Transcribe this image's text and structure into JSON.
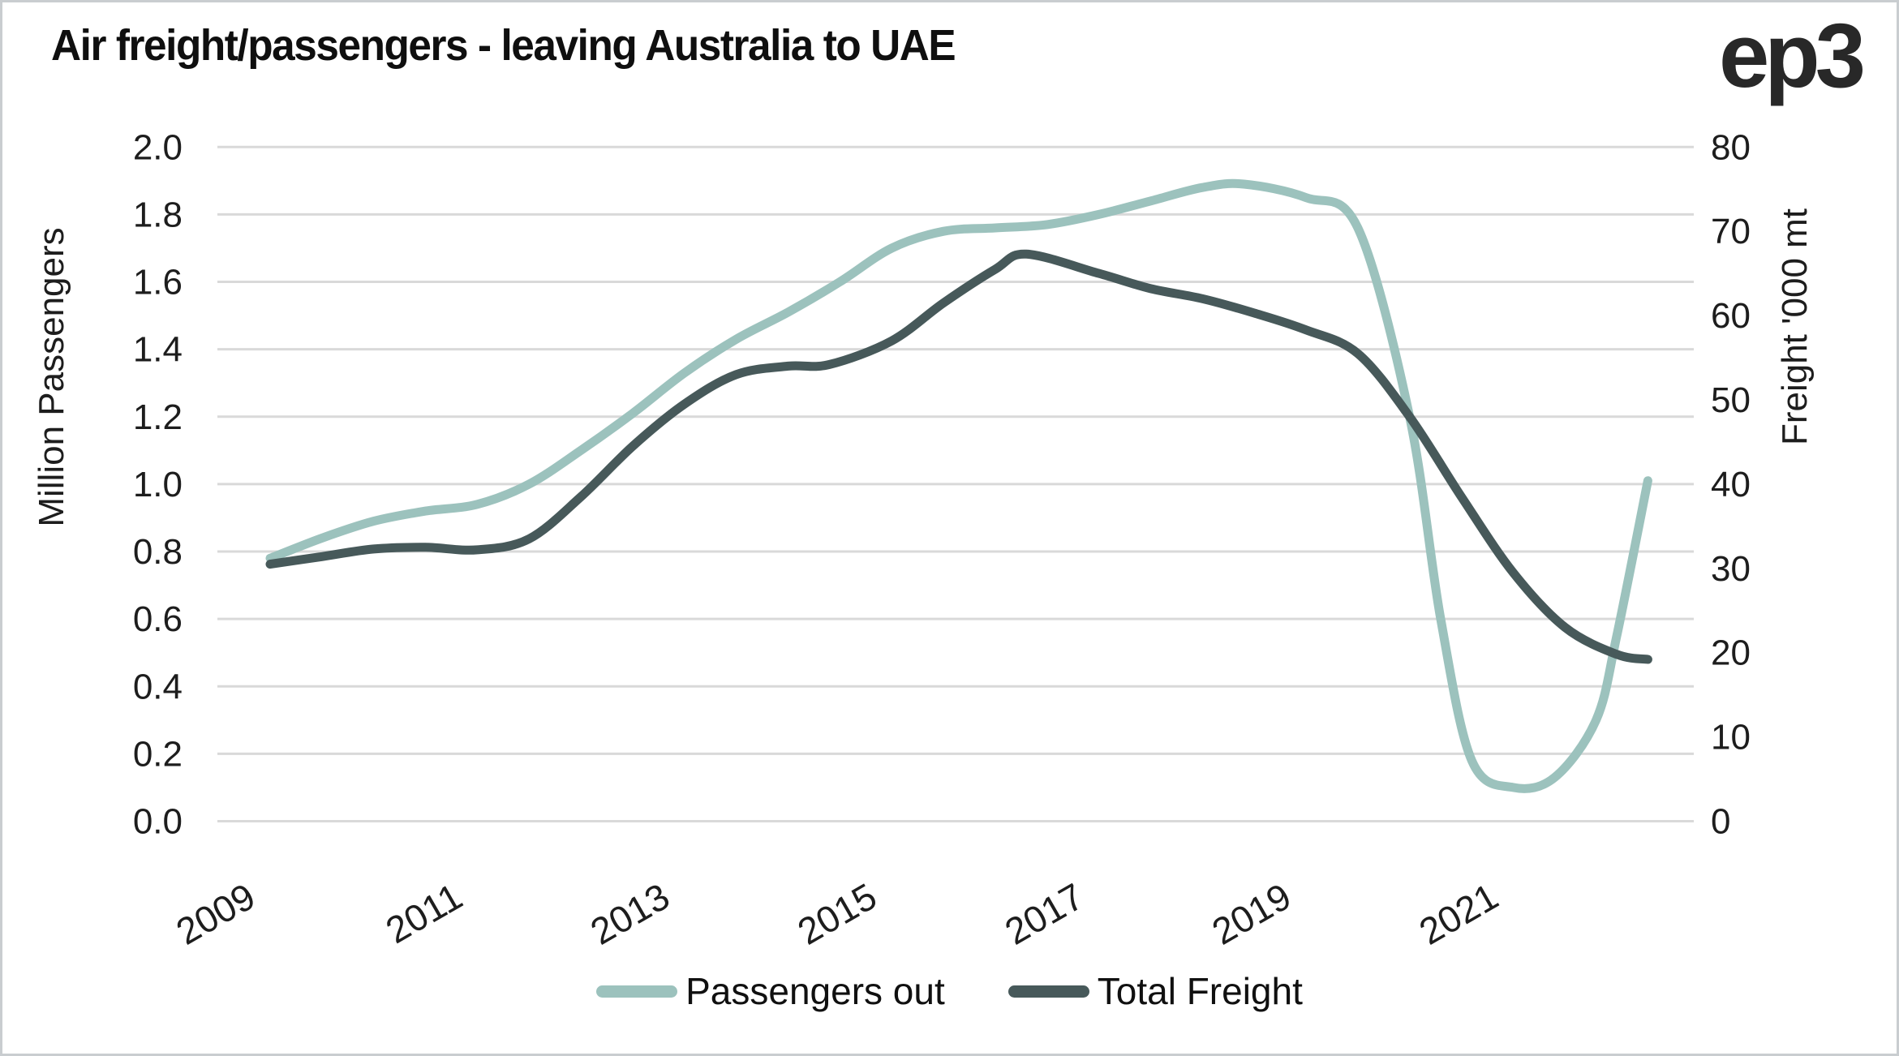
{
  "header": {
    "title": "Air freight/passengers - leaving Australia to UAE",
    "logo": "ep3"
  },
  "legend": {
    "items": [
      {
        "label": "Passengers out",
        "color": "#9cc2bd"
      },
      {
        "label": "Total Freight",
        "color": "#47595a"
      }
    ]
  },
  "colors": {
    "passengers_line": "#9cc2bd",
    "freight_line": "#47595a",
    "gridline": "#d9d9d9",
    "text": "#1d1d1d",
    "background": "#ffffff",
    "frame_border": "#c9cdd0"
  },
  "chart_data": {
    "type": "line",
    "title": "Air freight/passengers - leaving Australia to UAE",
    "grid": "horizontal",
    "legend_position": "bottom",
    "x_axis": {
      "tick_labels": [
        "2009",
        "2011",
        "2013",
        "2015",
        "2017",
        "2019",
        "2021"
      ],
      "tick_years": [
        2009,
        2011,
        2013,
        2015,
        2017,
        2019,
        2021
      ],
      "range": [
        2009,
        2022.3
      ],
      "label_rotation_deg": -30
    },
    "y_left": {
      "label": "Million Passengers",
      "range": [
        0,
        2
      ],
      "tick_step": 0.2,
      "tick_labels": [
        "0.0",
        "0.2",
        "0.4",
        "0.6",
        "0.8",
        "1.0",
        "1.2",
        "1.4",
        "1.6",
        "1.8",
        "2.0"
      ]
    },
    "y_right": {
      "label": "Freight '000 mt",
      "range": [
        0,
        80
      ],
      "tick_step": 10,
      "tick_labels": [
        "0",
        "10",
        "20",
        "30",
        "40",
        "50",
        "60",
        "70",
        "80"
      ]
    },
    "series": [
      {
        "name": "Passengers out",
        "axis": "left",
        "unit": "million passengers",
        "color": "#9cc2bd",
        "points": [
          [
            2009.0,
            0.78
          ],
          [
            2009.5,
            0.84
          ],
          [
            2010.0,
            0.89
          ],
          [
            2010.5,
            0.92
          ],
          [
            2011.0,
            0.94
          ],
          [
            2011.5,
            1.0
          ],
          [
            2012.0,
            1.1
          ],
          [
            2012.5,
            1.21
          ],
          [
            2013.0,
            1.33
          ],
          [
            2013.5,
            1.43
          ],
          [
            2014.0,
            1.51
          ],
          [
            2014.5,
            1.6
          ],
          [
            2015.0,
            1.7
          ],
          [
            2015.5,
            1.75
          ],
          [
            2016.0,
            1.76
          ],
          [
            2016.5,
            1.77
          ],
          [
            2017.0,
            1.8
          ],
          [
            2017.5,
            1.84
          ],
          [
            2018.0,
            1.88
          ],
          [
            2018.4,
            1.89
          ],
          [
            2019.0,
            1.85
          ],
          [
            2019.5,
            1.76
          ],
          [
            2020.0,
            1.2
          ],
          [
            2020.3,
            0.6
          ],
          [
            2020.6,
            0.18
          ],
          [
            2021.0,
            0.1
          ],
          [
            2021.4,
            0.13
          ],
          [
            2021.8,
            0.3
          ],
          [
            2022.0,
            0.55
          ],
          [
            2022.3,
            1.01
          ]
        ]
      },
      {
        "name": "Total Freight",
        "axis": "right",
        "unit": "'000 mt",
        "color": "#47595a",
        "points": [
          [
            2009.0,
            30.5
          ],
          [
            2009.5,
            31.4
          ],
          [
            2010.0,
            32.3
          ],
          [
            2010.5,
            32.5
          ],
          [
            2011.0,
            32.2
          ],
          [
            2011.5,
            33.5
          ],
          [
            2012.0,
            38.5
          ],
          [
            2012.5,
            44.5
          ],
          [
            2013.0,
            49.5
          ],
          [
            2013.5,
            53.0
          ],
          [
            2014.0,
            54.0
          ],
          [
            2014.4,
            54.2
          ],
          [
            2015.0,
            57.0
          ],
          [
            2015.5,
            61.5
          ],
          [
            2016.0,
            65.5
          ],
          [
            2016.3,
            67.3
          ],
          [
            2017.0,
            65.0
          ],
          [
            2017.5,
            63.2
          ],
          [
            2018.0,
            62.0
          ],
          [
            2018.5,
            60.3
          ],
          [
            2019.0,
            58.3
          ],
          [
            2019.5,
            55.5
          ],
          [
            2020.0,
            48.0
          ],
          [
            2020.5,
            38.5
          ],
          [
            2021.0,
            29.5
          ],
          [
            2021.5,
            23.0
          ],
          [
            2022.0,
            19.8
          ],
          [
            2022.3,
            19.2
          ]
        ]
      }
    ]
  }
}
